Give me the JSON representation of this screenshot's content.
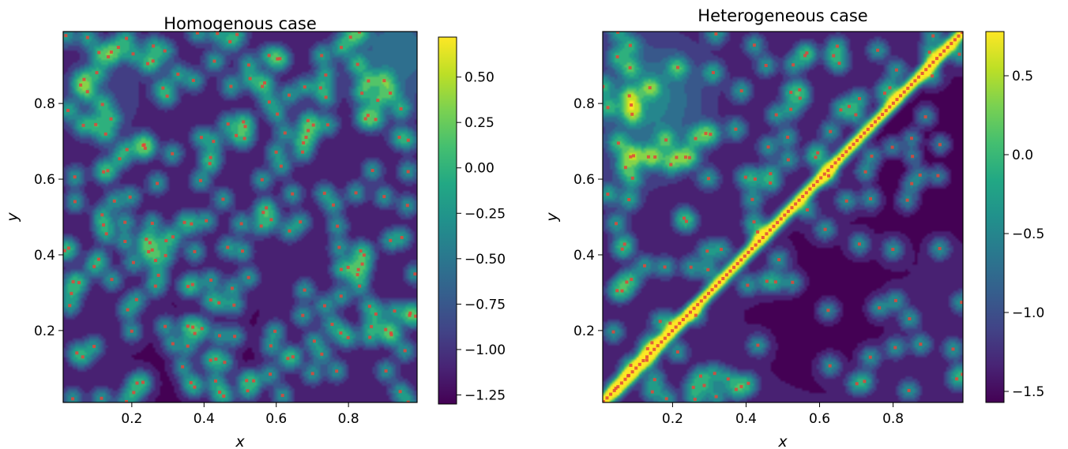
{
  "chart_data": [
    {
      "type": "heatmap",
      "title": "Homogenous case",
      "xlabel": "x",
      "ylabel": "y",
      "xlim": [
        0.01,
        0.99
      ],
      "ylim": [
        0.01,
        0.99
      ],
      "xticks": [
        0.2,
        0.4,
        0.6,
        0.8
      ],
      "yticks": [
        0.2,
        0.4,
        0.6,
        0.8
      ],
      "colormap": "viridis",
      "colorbar": {
        "range": [
          -1.3,
          0.72
        ],
        "ticks": [
          0.5,
          0.25,
          0.0,
          -0.25,
          -0.5,
          -0.75,
          -1.0,
          -1.25
        ],
        "tick_labels": [
          "0.50",
          "0.25",
          "0.00",
          "−0.25",
          "−0.50",
          "−0.75",
          "−1.00",
          "−1.25"
        ]
      },
      "seed": 7,
      "n_random_points": 230,
      "diagonal": false,
      "point_color": "#e0463a",
      "grid": false
    },
    {
      "type": "heatmap",
      "title": "Heterogeneous case",
      "xlabel": "x",
      "ylabel": "y",
      "xlim": [
        0.01,
        0.99
      ],
      "ylim": [
        0.01,
        0.99
      ],
      "xticks": [
        0.2,
        0.4,
        0.6,
        0.8
      ],
      "yticks": [
        0.2,
        0.4,
        0.6,
        0.8
      ],
      "colormap": "viridis",
      "colorbar": {
        "range": [
          -1.57,
          0.78
        ],
        "ticks": [
          0.5,
          0.0,
          -0.5,
          -1.0,
          -1.5
        ],
        "tick_labels": [
          "0.5",
          "0.0",
          "−0.5",
          "−1.0",
          "−1.5"
        ]
      },
      "seed": 23,
      "n_random_points": 150,
      "diagonal": true,
      "diagonal_points": 100,
      "point_color": "#e0463a",
      "grid": false
    }
  ]
}
